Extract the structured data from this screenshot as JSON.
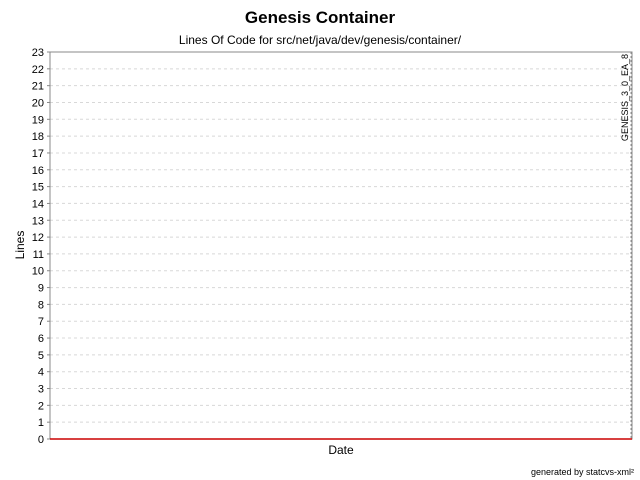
{
  "chart_data": {
    "type": "line",
    "title": "Genesis Container",
    "subtitle": "Lines Of Code for src/net/java/dev/genesis/container/",
    "xlabel": "Date",
    "ylabel": "Lines",
    "ylim": [
      0,
      23
    ],
    "yticks": [
      0,
      1,
      2,
      3,
      4,
      5,
      6,
      7,
      8,
      9,
      10,
      11,
      12,
      13,
      14,
      15,
      16,
      17,
      18,
      19,
      20,
      21,
      22,
      23
    ],
    "grid": true,
    "series": [
      {
        "values": [
          0,
          0
        ],
        "color": "#cc0000"
      }
    ],
    "markers": [
      {
        "label": "GENESIS_3_0_EA_8"
      }
    ],
    "footer": "generated by statcvs-xml²"
  }
}
